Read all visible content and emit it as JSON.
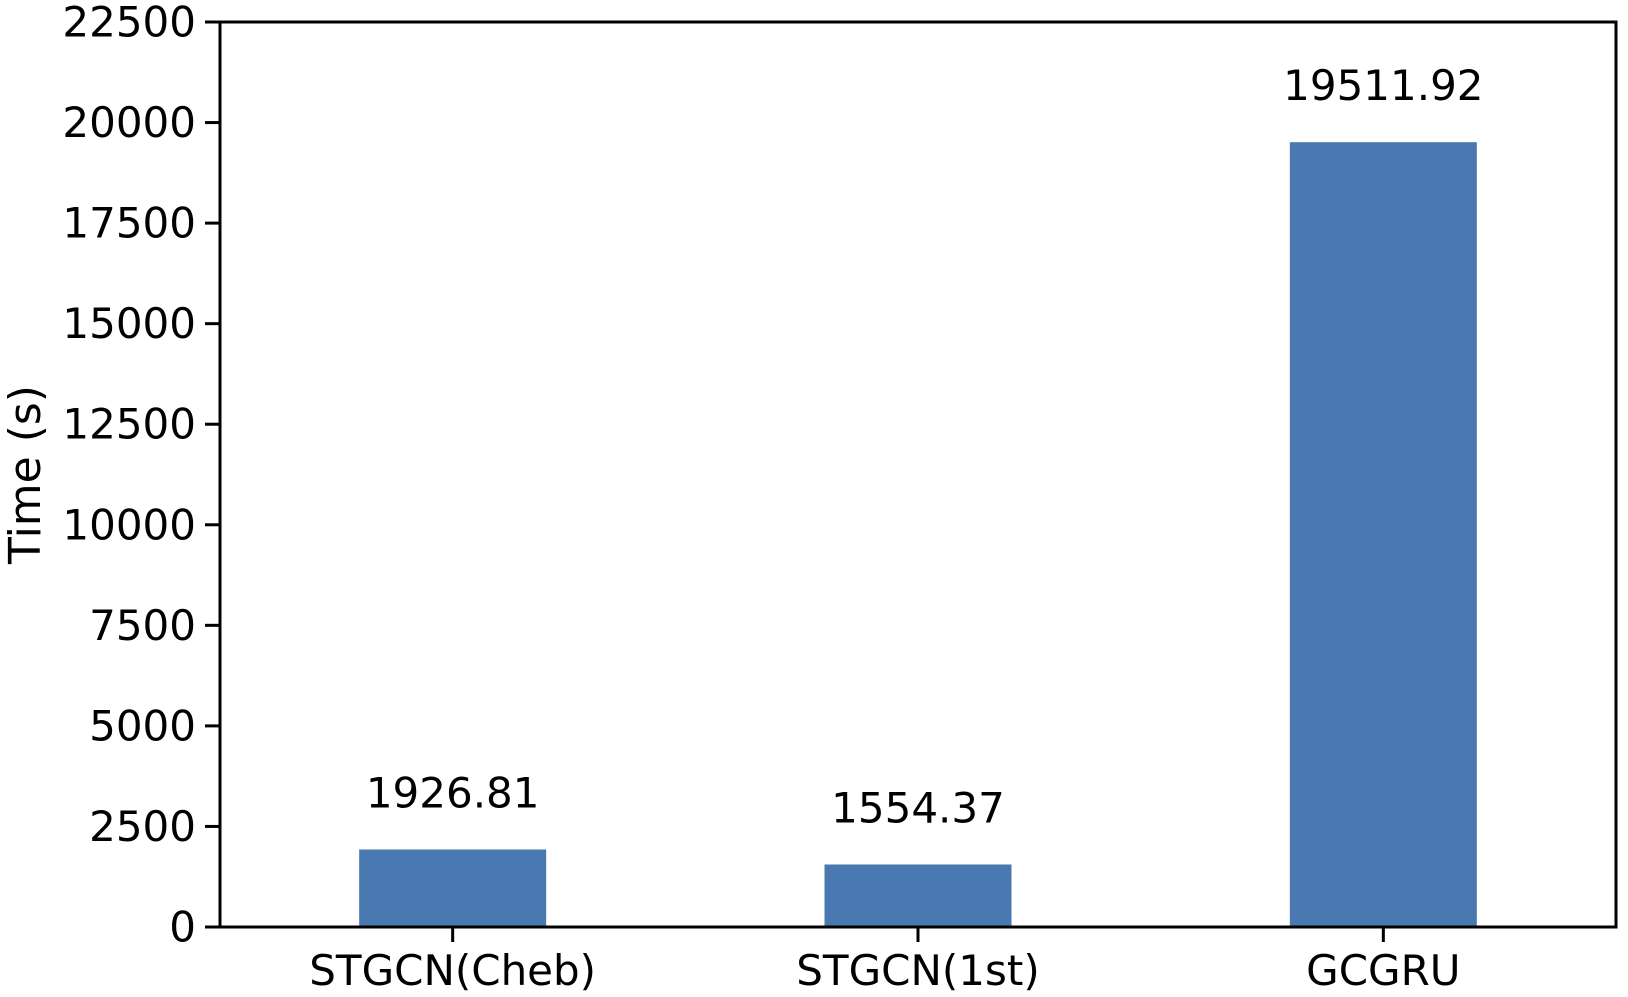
{
  "figure": {
    "background": "#ffffff"
  },
  "chart_data": {
    "type": "bar",
    "title": "",
    "categories": [
      "STGCN(Cheb)",
      "STGCN(1st)",
      "GCGRU"
    ],
    "values": [
      1926.81,
      1554.37,
      19511.92
    ],
    "value_labels": [
      "1926.81",
      "1554.37",
      "19511.92"
    ],
    "xlabel": "",
    "ylabel": "Time (s)",
    "ylim": [
      0,
      22500
    ],
    "yticks": [
      0,
      2500,
      5000,
      7500,
      10000,
      12500,
      15000,
      17500,
      20000,
      22500
    ],
    "ytick_labels": [
      "0",
      "2500",
      "5000",
      "7500",
      "10000",
      "12500",
      "15000",
      "17500",
      "20000",
      "22500"
    ],
    "grid": false,
    "legend": null,
    "bar_color": "#4a78b0",
    "axis_color": "#000000",
    "text_color": "#000000",
    "background_color": "#ffffff"
  }
}
